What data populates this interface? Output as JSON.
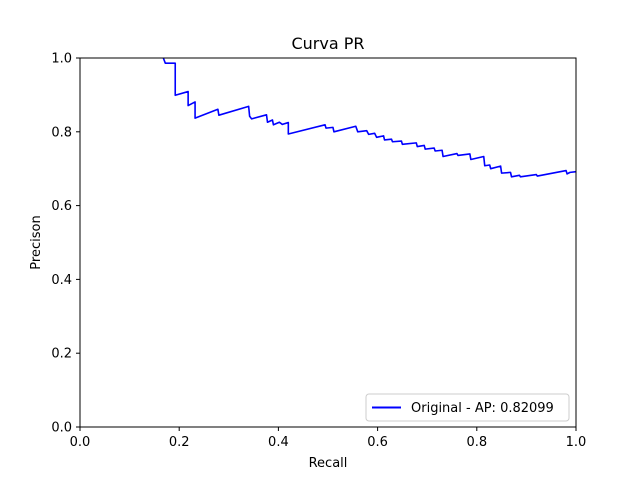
{
  "chart_data": {
    "type": "line",
    "title": "Curva PR",
    "xlabel": "Recall",
    "ylabel": "Precison",
    "xlim": [
      0,
      1
    ],
    "ylim": [
      0,
      1
    ],
    "xticks": [
      "0.0",
      "0.2",
      "0.4",
      "0.6",
      "0.8",
      "1.0"
    ],
    "yticks": [
      "0.0",
      "0.2",
      "0.4",
      "0.6",
      "0.8",
      "1.0"
    ],
    "grid": false,
    "legend_position": "lower-right",
    "series": [
      {
        "name": "Original - AP: 0.82099",
        "color": "#0000ff",
        "points": [
          [
            0.168,
            1.0
          ],
          [
            0.172,
            0.986
          ],
          [
            0.192,
            0.986
          ],
          [
            0.192,
            0.899
          ],
          [
            0.218,
            0.909
          ],
          [
            0.218,
            0.871
          ],
          [
            0.232,
            0.881
          ],
          [
            0.232,
            0.837
          ],
          [
            0.278,
            0.861
          ],
          [
            0.28,
            0.845
          ],
          [
            0.34,
            0.869
          ],
          [
            0.342,
            0.842
          ],
          [
            0.346,
            0.835
          ],
          [
            0.376,
            0.846
          ],
          [
            0.378,
            0.826
          ],
          [
            0.388,
            0.832
          ],
          [
            0.39,
            0.819
          ],
          [
            0.402,
            0.826
          ],
          [
            0.408,
            0.82
          ],
          [
            0.42,
            0.825
          ],
          [
            0.42,
            0.794
          ],
          [
            0.494,
            0.819
          ],
          [
            0.496,
            0.81
          ],
          [
            0.51,
            0.812
          ],
          [
            0.512,
            0.8
          ],
          [
            0.556,
            0.815
          ],
          [
            0.56,
            0.8
          ],
          [
            0.578,
            0.803
          ],
          [
            0.582,
            0.793
          ],
          [
            0.594,
            0.796
          ],
          [
            0.598,
            0.785
          ],
          [
            0.612,
            0.789
          ],
          [
            0.614,
            0.778
          ],
          [
            0.628,
            0.78
          ],
          [
            0.63,
            0.773
          ],
          [
            0.648,
            0.775
          ],
          [
            0.65,
            0.766
          ],
          [
            0.678,
            0.77
          ],
          [
            0.68,
            0.76
          ],
          [
            0.694,
            0.763
          ],
          [
            0.696,
            0.753
          ],
          [
            0.714,
            0.756
          ],
          [
            0.716,
            0.748
          ],
          [
            0.73,
            0.75
          ],
          [
            0.732,
            0.733
          ],
          [
            0.76,
            0.741
          ],
          [
            0.762,
            0.736
          ],
          [
            0.786,
            0.74
          ],
          [
            0.788,
            0.725
          ],
          [
            0.814,
            0.733
          ],
          [
            0.816,
            0.708
          ],
          [
            0.826,
            0.71
          ],
          [
            0.828,
            0.7
          ],
          [
            0.848,
            0.707
          ],
          [
            0.85,
            0.688
          ],
          [
            0.868,
            0.69
          ],
          [
            0.87,
            0.678
          ],
          [
            0.886,
            0.682
          ],
          [
            0.888,
            0.678
          ],
          [
            0.92,
            0.684
          ],
          [
            0.922,
            0.68
          ],
          [
            0.98,
            0.695
          ],
          [
            0.982,
            0.686
          ],
          [
            0.988,
            0.69
          ],
          [
            1.0,
            0.692
          ]
        ]
      }
    ]
  }
}
